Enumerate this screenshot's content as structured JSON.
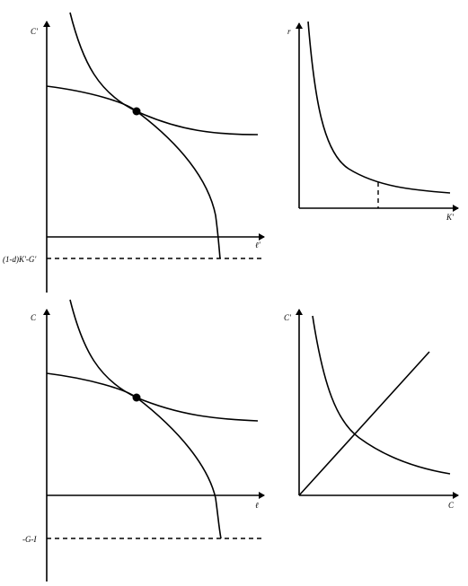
{
  "panels": {
    "top_left": {
      "y_label": "C'",
      "x_label": "ℓ'",
      "floor_label": "(1-d)K'-G'"
    },
    "top_right": {
      "y_label": "r",
      "x_label": "K'"
    },
    "bottom_left": {
      "y_label": "C",
      "x_label": "ℓ",
      "floor_label": "-G-I"
    },
    "bottom_right": {
      "y_label": "C'",
      "x_label": "C"
    }
  },
  "colors": {
    "background": "#ffffff",
    "ink": "#000000"
  }
}
